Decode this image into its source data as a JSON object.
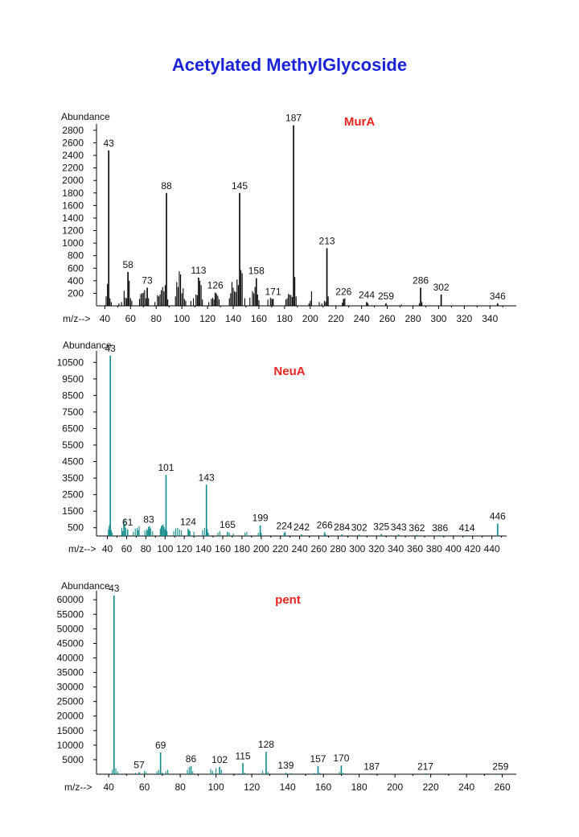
{
  "title": "Acetylated MethylGlycoside",
  "chart_data": [
    {
      "type": "bar",
      "title": "MurA",
      "ylabel": "Abundance",
      "xlabel": "m/z-->",
      "color": "#000000",
      "xlim": [
        36,
        358
      ],
      "ylim": [
        0,
        2850
      ],
      "yticks": [
        200,
        400,
        600,
        800,
        1000,
        1200,
        1400,
        1600,
        1800,
        2000,
        2200,
        2400,
        2600,
        2800
      ],
      "xticks": [
        40,
        60,
        80,
        100,
        120,
        140,
        160,
        180,
        200,
        220,
        240,
        260,
        280,
        300,
        320,
        340
      ],
      "peaks": [
        {
          "x": 41,
          "y": 150
        },
        {
          "x": 42,
          "y": 350
        },
        {
          "x": 43,
          "y": 2480,
          "label": "43"
        },
        {
          "x": 44,
          "y": 120
        },
        {
          "x": 45,
          "y": 60
        },
        {
          "x": 51,
          "y": 40
        },
        {
          "x": 53,
          "y": 60
        },
        {
          "x": 55,
          "y": 240
        },
        {
          "x": 56,
          "y": 130
        },
        {
          "x": 57,
          "y": 120
        },
        {
          "x": 58,
          "y": 540,
          "label": "58"
        },
        {
          "x": 59,
          "y": 400
        },
        {
          "x": 60,
          "y": 120
        },
        {
          "x": 61,
          "y": 80
        },
        {
          "x": 67,
          "y": 110
        },
        {
          "x": 68,
          "y": 190
        },
        {
          "x": 69,
          "y": 200
        },
        {
          "x": 70,
          "y": 210
        },
        {
          "x": 71,
          "y": 250
        },
        {
          "x": 72,
          "y": 120
        },
        {
          "x": 73,
          "y": 290,
          "label": "73"
        },
        {
          "x": 74,
          "y": 120
        },
        {
          "x": 79,
          "y": 60
        },
        {
          "x": 81,
          "y": 170
        },
        {
          "x": 82,
          "y": 150
        },
        {
          "x": 83,
          "y": 180
        },
        {
          "x": 84,
          "y": 250
        },
        {
          "x": 85,
          "y": 300
        },
        {
          "x": 86,
          "y": 230
        },
        {
          "x": 87,
          "y": 330
        },
        {
          "x": 88,
          "y": 1800,
          "label": "88"
        },
        {
          "x": 89,
          "y": 100
        },
        {
          "x": 95,
          "y": 150
        },
        {
          "x": 96,
          "y": 380
        },
        {
          "x": 97,
          "y": 300
        },
        {
          "x": 98,
          "y": 550
        },
        {
          "x": 99,
          "y": 500
        },
        {
          "x": 100,
          "y": 200
        },
        {
          "x": 101,
          "y": 280
        },
        {
          "x": 102,
          "y": 110
        },
        {
          "x": 103,
          "y": 80
        },
        {
          "x": 107,
          "y": 80
        },
        {
          "x": 109,
          "y": 120
        },
        {
          "x": 111,
          "y": 180
        },
        {
          "x": 112,
          "y": 170
        },
        {
          "x": 113,
          "y": 450,
          "label": "113"
        },
        {
          "x": 114,
          "y": 400
        },
        {
          "x": 115,
          "y": 330
        },
        {
          "x": 116,
          "y": 100
        },
        {
          "x": 121,
          "y": 60
        },
        {
          "x": 123,
          "y": 110
        },
        {
          "x": 124,
          "y": 130
        },
        {
          "x": 125,
          "y": 100
        },
        {
          "x": 126,
          "y": 210,
          "label": "126"
        },
        {
          "x": 127,
          "y": 190
        },
        {
          "x": 128,
          "y": 160
        },
        {
          "x": 129,
          "y": 100
        },
        {
          "x": 137,
          "y": 120
        },
        {
          "x": 138,
          "y": 200
        },
        {
          "x": 139,
          "y": 380
        },
        {
          "x": 140,
          "y": 290
        },
        {
          "x": 141,
          "y": 230
        },
        {
          "x": 142,
          "y": 220
        },
        {
          "x": 143,
          "y": 420
        },
        {
          "x": 144,
          "y": 330
        },
        {
          "x": 145,
          "y": 1800,
          "label": "145"
        },
        {
          "x": 146,
          "y": 570
        },
        {
          "x": 147,
          "y": 520
        },
        {
          "x": 149,
          "y": 120
        },
        {
          "x": 153,
          "y": 130
        },
        {
          "x": 155,
          "y": 230
        },
        {
          "x": 156,
          "y": 200
        },
        {
          "x": 157,
          "y": 300
        },
        {
          "x": 158,
          "y": 440,
          "label": "158"
        },
        {
          "x": 159,
          "y": 180
        },
        {
          "x": 160,
          "y": 90
        },
        {
          "x": 167,
          "y": 100
        },
        {
          "x": 169,
          "y": 130
        },
        {
          "x": 170,
          "y": 110
        },
        {
          "x": 171,
          "y": 110,
          "label": "171"
        },
        {
          "x": 181,
          "y": 100
        },
        {
          "x": 182,
          "y": 120
        },
        {
          "x": 183,
          "y": 190
        },
        {
          "x": 184,
          "y": 180
        },
        {
          "x": 185,
          "y": 170
        },
        {
          "x": 186,
          "y": 140
        },
        {
          "x": 187,
          "y": 2880,
          "label": "187"
        },
        {
          "x": 188,
          "y": 460
        },
        {
          "x": 189,
          "y": 150
        },
        {
          "x": 199,
          "y": 40
        },
        {
          "x": 200,
          "y": 80
        },
        {
          "x": 201,
          "y": 230
        },
        {
          "x": 207,
          "y": 60
        },
        {
          "x": 209,
          "y": 40
        },
        {
          "x": 211,
          "y": 80
        },
        {
          "x": 212,
          "y": 60
        },
        {
          "x": 213,
          "y": 920,
          "label": "213"
        },
        {
          "x": 214,
          "y": 150
        },
        {
          "x": 225,
          "y": 50
        },
        {
          "x": 226,
          "y": 110,
          "label": "226"
        },
        {
          "x": 227,
          "y": 120
        },
        {
          "x": 244,
          "y": 60,
          "label": "244"
        },
        {
          "x": 245,
          "y": 40
        },
        {
          "x": 259,
          "y": 40,
          "label": "259"
        },
        {
          "x": 271,
          "y": 20
        },
        {
          "x": 285,
          "y": 40
        },
        {
          "x": 286,
          "y": 290,
          "label": "286"
        },
        {
          "x": 287,
          "y": 60
        },
        {
          "x": 302,
          "y": 180,
          "label": "302"
        },
        {
          "x": 346,
          "y": 40,
          "label": "346"
        }
      ]
    },
    {
      "type": "bar",
      "title": "NeuA",
      "ylabel": "Abundance",
      "xlabel": "m/z-->",
      "color": "#0f8a8a",
      "xlim": [
        32,
        452
      ],
      "ylim": [
        0,
        11000
      ],
      "yticks": [
        500,
        1500,
        2500,
        3500,
        4500,
        5500,
        6500,
        7500,
        8500,
        9500,
        10500
      ],
      "xticks": [
        40,
        60,
        80,
        100,
        120,
        140,
        160,
        180,
        200,
        220,
        240,
        260,
        280,
        300,
        320,
        340,
        360,
        380,
        400,
        420,
        440
      ],
      "peaks": [
        {
          "x": 41,
          "y": 400
        },
        {
          "x": 42,
          "y": 650
        },
        {
          "x": 43,
          "y": 10900,
          "label": "43"
        },
        {
          "x": 44,
          "y": 350
        },
        {
          "x": 45,
          "y": 200
        },
        {
          "x": 55,
          "y": 500
        },
        {
          "x": 56,
          "y": 300
        },
        {
          "x": 57,
          "y": 700
        },
        {
          "x": 58,
          "y": 1000
        },
        {
          "x": 59,
          "y": 500
        },
        {
          "x": 61,
          "y": 400,
          "label": "61"
        },
        {
          "x": 67,
          "y": 250
        },
        {
          "x": 69,
          "y": 450
        },
        {
          "x": 71,
          "y": 500
        },
        {
          "x": 72,
          "y": 350
        },
        {
          "x": 73,
          "y": 600
        },
        {
          "x": 79,
          "y": 350
        },
        {
          "x": 81,
          "y": 400
        },
        {
          "x": 82,
          "y": 350
        },
        {
          "x": 83,
          "y": 550,
          "label": "83"
        },
        {
          "x": 84,
          "y": 600
        },
        {
          "x": 85,
          "y": 450
        },
        {
          "x": 87,
          "y": 300
        },
        {
          "x": 95,
          "y": 450
        },
        {
          "x": 96,
          "y": 600
        },
        {
          "x": 97,
          "y": 650
        },
        {
          "x": 98,
          "y": 700
        },
        {
          "x": 99,
          "y": 550
        },
        {
          "x": 100,
          "y": 400
        },
        {
          "x": 101,
          "y": 3700,
          "label": "101"
        },
        {
          "x": 102,
          "y": 300
        },
        {
          "x": 109,
          "y": 300
        },
        {
          "x": 111,
          "y": 450
        },
        {
          "x": 113,
          "y": 500
        },
        {
          "x": 115,
          "y": 400
        },
        {
          "x": 117,
          "y": 350
        },
        {
          "x": 124,
          "y": 420,
          "label": "124"
        },
        {
          "x": 125,
          "y": 350
        },
        {
          "x": 126,
          "y": 300
        },
        {
          "x": 130,
          "y": 250
        },
        {
          "x": 139,
          "y": 350
        },
        {
          "x": 141,
          "y": 500
        },
        {
          "x": 143,
          "y": 3100,
          "label": "143"
        },
        {
          "x": 144,
          "y": 400
        },
        {
          "x": 145,
          "y": 200
        },
        {
          "x": 155,
          "y": 200
        },
        {
          "x": 157,
          "y": 300
        },
        {
          "x": 165,
          "y": 250,
          "label": "165"
        },
        {
          "x": 167,
          "y": 200
        },
        {
          "x": 171,
          "y": 150
        },
        {
          "x": 183,
          "y": 200
        },
        {
          "x": 185,
          "y": 250
        },
        {
          "x": 197,
          "y": 200
        },
        {
          "x": 199,
          "y": 650,
          "label": "199"
        },
        {
          "x": 200,
          "y": 200
        },
        {
          "x": 224,
          "y": 180,
          "label": "224"
        },
        {
          "x": 225,
          "y": 250
        },
        {
          "x": 242,
          "y": 100,
          "label": "242"
        },
        {
          "x": 266,
          "y": 230,
          "label": "266"
        },
        {
          "x": 267,
          "y": 100
        },
        {
          "x": 284,
          "y": 100,
          "label": "284"
        },
        {
          "x": 302,
          "y": 80,
          "label": "302"
        },
        {
          "x": 325,
          "y": 120,
          "label": "325"
        },
        {
          "x": 343,
          "y": 90,
          "label": "343"
        },
        {
          "x": 362,
          "y": 60,
          "label": "362"
        },
        {
          "x": 386,
          "y": 50,
          "label": "386"
        },
        {
          "x": 414,
          "y": 40,
          "label": "414"
        },
        {
          "x": 446,
          "y": 750,
          "label": "446"
        }
      ]
    },
    {
      "type": "bar",
      "title": "pent",
      "ylabel": "Abundance",
      "xlabel": "m/z-->",
      "color": "#0f8a8a",
      "xlim": [
        35,
        266
      ],
      "ylim": [
        0,
        62000
      ],
      "yticks": [
        5000,
        10000,
        15000,
        20000,
        25000,
        30000,
        35000,
        40000,
        45000,
        50000,
        55000,
        60000
      ],
      "xticks": [
        40,
        60,
        80,
        100,
        120,
        140,
        160,
        180,
        200,
        220,
        240,
        260
      ],
      "peaks": [
        {
          "x": 42,
          "y": 1500
        },
        {
          "x": 43,
          "y": 61500,
          "label": "43"
        },
        {
          "x": 44,
          "y": 2000
        },
        {
          "x": 45,
          "y": 1000
        },
        {
          "x": 55,
          "y": 500
        },
        {
          "x": 57,
          "y": 700,
          "label": "57"
        },
        {
          "x": 60,
          "y": 1200
        },
        {
          "x": 61,
          "y": 800
        },
        {
          "x": 67,
          "y": 1000
        },
        {
          "x": 68,
          "y": 1500
        },
        {
          "x": 69,
          "y": 7500,
          "label": "69"
        },
        {
          "x": 70,
          "y": 600
        },
        {
          "x": 72,
          "y": 1000
        },
        {
          "x": 73,
          "y": 1500
        },
        {
          "x": 84,
          "y": 1500
        },
        {
          "x": 85,
          "y": 2500
        },
        {
          "x": 86,
          "y": 2800,
          "label": "86"
        },
        {
          "x": 87,
          "y": 1000
        },
        {
          "x": 97,
          "y": 1800
        },
        {
          "x": 98,
          "y": 1200
        },
        {
          "x": 100,
          "y": 2000
        },
        {
          "x": 102,
          "y": 2500,
          "label": "102"
        },
        {
          "x": 103,
          "y": 1500
        },
        {
          "x": 115,
          "y": 3800,
          "label": "115"
        },
        {
          "x": 116,
          "y": 600
        },
        {
          "x": 126,
          "y": 1200
        },
        {
          "x": 128,
          "y": 7700,
          "label": "128"
        },
        {
          "x": 129,
          "y": 800
        },
        {
          "x": 139,
          "y": 500,
          "label": "139"
        },
        {
          "x": 142,
          "y": 400
        },
        {
          "x": 155,
          "y": 400
        },
        {
          "x": 157,
          "y": 2800,
          "label": "157"
        },
        {
          "x": 158,
          "y": 500
        },
        {
          "x": 169,
          "y": 800
        },
        {
          "x": 170,
          "y": 3000,
          "label": "170"
        },
        {
          "x": 171,
          "y": 500
        },
        {
          "x": 187,
          "y": 200,
          "label": "187"
        },
        {
          "x": 217,
          "y": 150,
          "label": "217"
        },
        {
          "x": 259,
          "y": 150,
          "label": "259"
        }
      ]
    }
  ]
}
